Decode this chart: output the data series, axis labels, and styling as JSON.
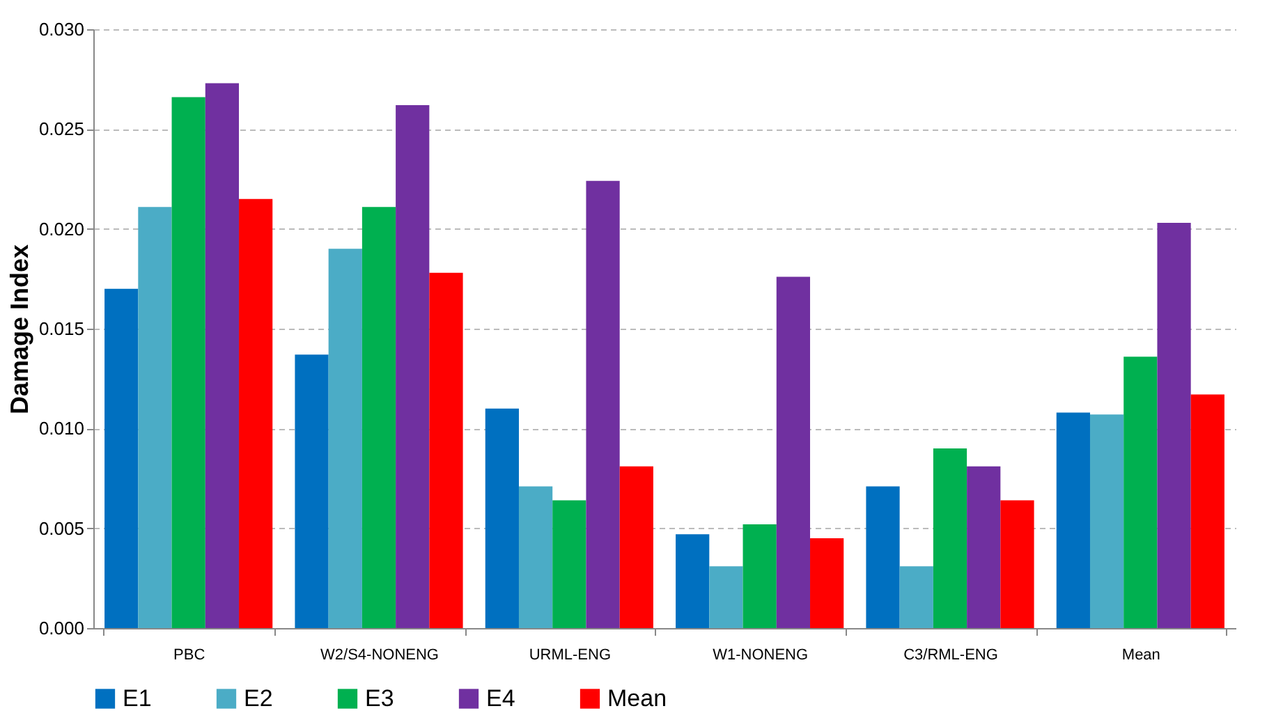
{
  "chart_data": {
    "type": "bar",
    "ylabel": "Damage Index",
    "categories": [
      "PBC",
      "W2/S4-NONENG",
      "URML-ENG",
      "W1-NONENG",
      "C3/RML-ENG",
      "Mean"
    ],
    "series": [
      {
        "name": "E1",
        "color": "#0070c0",
        "values": [
          0.017,
          0.0137,
          0.011,
          0.0047,
          0.0071,
          0.0108
        ]
      },
      {
        "name": "E2",
        "color": "#4bacc6",
        "values": [
          0.0211,
          0.019,
          0.0071,
          0.0031,
          0.0031,
          0.0107
        ]
      },
      {
        "name": "E3",
        "color": "#00b050",
        "values": [
          0.0266,
          0.0211,
          0.0064,
          0.0052,
          0.009,
          0.0136
        ]
      },
      {
        "name": "E4",
        "color": "#7030a0",
        "values": [
          0.0273,
          0.0262,
          0.0224,
          0.0176,
          0.0081,
          0.0203
        ]
      },
      {
        "name": "Mean",
        "color": "#ff0000",
        "values": [
          0.0215,
          0.0178,
          0.0081,
          0.0045,
          0.0064,
          0.0117
        ]
      }
    ],
    "ylim": [
      0,
      0.03
    ],
    "yticks": [
      {
        "value": 0,
        "label": "0.000"
      },
      {
        "value": 0.005,
        "label": "0.005"
      },
      {
        "value": 0.01,
        "label": "0.010"
      },
      {
        "value": 0.015,
        "label": "0.015"
      },
      {
        "value": 0.02,
        "label": "0.020"
      },
      {
        "value": 0.025,
        "label": "0.025"
      },
      {
        "value": 0.03,
        "label": "0.030"
      }
    ],
    "grid": "y",
    "legend": "bottom"
  }
}
